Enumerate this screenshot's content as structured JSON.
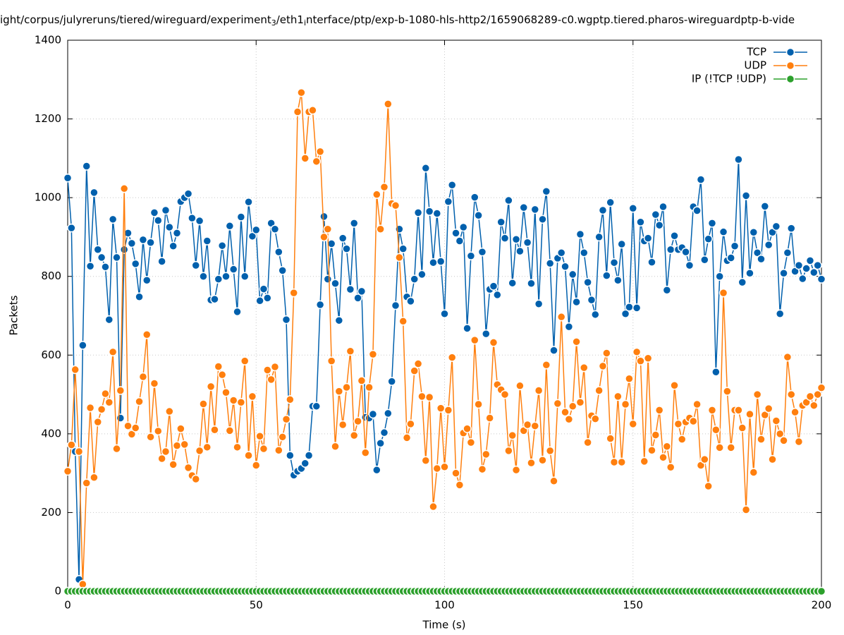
{
  "chart_data": {
    "type": "line",
    "title_parts": [
      "ight/corpus/julyreruns/tiered/wireguard/experiment",
      "3",
      "/eth1",
      "i",
      "nterface/ptp/exp-b-1080-hls-http2/1659068289-c0.wgptp.tiered.pharos-wireguardptp-b-vide"
    ],
    "x_label": "Time (s)",
    "y_label": "Packets",
    "xlim": [
      0,
      200
    ],
    "xticks": [
      0,
      50,
      100,
      150,
      200
    ],
    "ylim": [
      0,
      1400
    ],
    "yticks": [
      0,
      200,
      400,
      600,
      800,
      1000,
      1200,
      1400
    ],
    "grid": true,
    "legend": "top right",
    "x": [
      0,
      1,
      2,
      3,
      4,
      5,
      6,
      7,
      8,
      9,
      10,
      11,
      12,
      13,
      14,
      15,
      16,
      17,
      18,
      19,
      20,
      21,
      22,
      23,
      24,
      25,
      26,
      27,
      28,
      29,
      30,
      31,
      32,
      33,
      34,
      35,
      36,
      37,
      38,
      39,
      40,
      41,
      42,
      43,
      44,
      45,
      46,
      47,
      48,
      49,
      50,
      51,
      52,
      53,
      54,
      55,
      56,
      57,
      58,
      59,
      60,
      61,
      62,
      63,
      64,
      65,
      66,
      67,
      68,
      69,
      70,
      71,
      72,
      73,
      74,
      75,
      76,
      77,
      78,
      79,
      80,
      81,
      82,
      83,
      84,
      85,
      86,
      87,
      88,
      89,
      90,
      91,
      92,
      93,
      94,
      95,
      96,
      97,
      98,
      99,
      100,
      101,
      102,
      103,
      104,
      105,
      106,
      107,
      108,
      109,
      110,
      111,
      112,
      113,
      114,
      115,
      116,
      117,
      118,
      119,
      120,
      121,
      122,
      123,
      124,
      125,
      126,
      127,
      128,
      129,
      130,
      131,
      132,
      133,
      134,
      135,
      136,
      137,
      138,
      139,
      140,
      141,
      142,
      143,
      144,
      145,
      146,
      147,
      148,
      149,
      150,
      151,
      152,
      153,
      154,
      155,
      156,
      157,
      158,
      159,
      160,
      161,
      162,
      163,
      164,
      165,
      166,
      167,
      168,
      169,
      170,
      171,
      172,
      173,
      174,
      175,
      176,
      177,
      178,
      179,
      180,
      181,
      182,
      183,
      184,
      185,
      186,
      187,
      188,
      189,
      190,
      191,
      192,
      193,
      194,
      195,
      196,
      197,
      198,
      199,
      200
    ],
    "series": [
      {
        "name": "TCP",
        "color": "#0060ad",
        "values": [
          1050,
          923,
          355,
          30,
          625,
          1080,
          826,
          1013,
          868,
          848,
          824,
          690,
          945,
          848,
          440,
          868,
          910,
          884,
          832,
          748,
          893,
          790,
          886,
          962,
          942,
          838,
          968,
          925,
          877,
          910,
          990,
          1000,
          1010,
          948,
          828,
          941,
          800,
          890,
          740,
          742,
          793,
          878,
          800,
          928,
          818,
          710,
          951,
          800,
          989,
          902,
          918,
          738,
          768,
          745,
          935,
          920,
          862,
          815,
          690,
          345,
          295,
          305,
          312,
          325,
          345,
          470,
          470,
          728,
          952,
          793,
          883,
          782,
          688,
          897,
          870,
          767,
          935,
          745,
          762,
          442,
          440,
          450,
          308,
          376,
          403,
          452,
          533,
          726,
          920,
          870,
          748,
          737,
          793,
          962,
          805,
          1075,
          965,
          835,
          960,
          838,
          705,
          990,
          1032,
          910,
          890,
          925,
          668,
          852,
          1001,
          955,
          862,
          654,
          767,
          775,
          753,
          938,
          897,
          993,
          783,
          894,
          864,
          975,
          886,
          782,
          970,
          730,
          945,
          1016,
          833,
          612,
          846,
          860,
          825,
          672,
          805,
          735,
          907,
          860,
          785,
          740,
          703,
          900,
          968,
          802,
          988,
          835,
          790,
          882,
          705,
          722,
          973,
          720,
          938,
          890,
          897,
          836,
          957,
          930,
          977,
          765,
          868,
          903,
          868,
          873,
          862,
          828,
          977,
          967,
          1046,
          842,
          895,
          935,
          557,
          800,
          913,
          840,
          847,
          877,
          1097,
          785,
          1005,
          808,
          912,
          860,
          844,
          978,
          880,
          912,
          927,
          705,
          808,
          860,
          922,
          813,
          828,
          794,
          820,
          840,
          810,
          828,
          793
        ]
      },
      {
        "name": "UDP",
        "color": "#ff7f0e",
        "values": [
          305,
          372,
          563,
          355,
          18,
          275,
          466,
          289,
          430,
          462,
          502,
          480,
          608,
          362,
          510,
          1023,
          420,
          399,
          415,
          482,
          545,
          652,
          392,
          528,
          407,
          337,
          355,
          457,
          322,
          370,
          413,
          373,
          314,
          294,
          285,
          357,
          476,
          366,
          520,
          410,
          571,
          550,
          505,
          408,
          485,
          366,
          480,
          585,
          345,
          495,
          320,
          394,
          362,
          562,
          538,
          570,
          358,
          392,
          437,
          487,
          758,
          1218,
          1267,
          1100,
          1218,
          1222,
          1092,
          1117,
          900,
          920,
          585,
          368,
          508,
          423,
          518,
          610,
          396,
          432,
          535,
          352,
          518,
          602,
          1008,
          920,
          1027,
          1238,
          985,
          980,
          848,
          686,
          390,
          425,
          560,
          578,
          495,
          332,
          493,
          215,
          312,
          465,
          316,
          460,
          594,
          300,
          270,
          402,
          413,
          378,
          638,
          475,
          310,
          348,
          440,
          632,
          525,
          512,
          500,
          357,
          396,
          308,
          522,
          408,
          423,
          326,
          420,
          510,
          333,
          575,
          357,
          280,
          477,
          697,
          455,
          437,
          470,
          634,
          480,
          568,
          378,
          446,
          438,
          510,
          572,
          605,
          388,
          328,
          495,
          328,
          475,
          540,
          425,
          608,
          585,
          330,
          592,
          358,
          397,
          460,
          340,
          368,
          315,
          523,
          425,
          386,
          430,
          440,
          432,
          475,
          320,
          335,
          267,
          460,
          410,
          365,
          758,
          508,
          365,
          460,
          460,
          415,
          207,
          450,
          302,
          500,
          386,
          448,
          464,
          335,
          433,
          400,
          383,
          595,
          500,
          455,
          380,
          472,
          480,
          495,
          472,
          500,
          517
        ]
      },
      {
        "name": "IP (!TCP  !UDP)",
        "color": "#2ca02c",
        "values": [
          0,
          0,
          0,
          0,
          0,
          0,
          0,
          0,
          0,
          0,
          0,
          0,
          0,
          0,
          0,
          0,
          0,
          0,
          0,
          0,
          0,
          0,
          0,
          0,
          0,
          0,
          0,
          0,
          0,
          0,
          0,
          0,
          0,
          0,
          0,
          0,
          0,
          0,
          0,
          0,
          0,
          0,
          0,
          0,
          0,
          0,
          0,
          0,
          0,
          0,
          0,
          0,
          0,
          0,
          0,
          0,
          0,
          0,
          0,
          0,
          0,
          0,
          0,
          0,
          0,
          0,
          0,
          0,
          0,
          0,
          0,
          0,
          0,
          0,
          0,
          0,
          0,
          0,
          0,
          0,
          0,
          0,
          0,
          0,
          0,
          0,
          0,
          0,
          0,
          0,
          0,
          0,
          0,
          0,
          0,
          0,
          0,
          0,
          0,
          0,
          0,
          0,
          0,
          0,
          0,
          0,
          0,
          0,
          0,
          0,
          0,
          0,
          0,
          0,
          0,
          0,
          0,
          0,
          0,
          0,
          0,
          0,
          0,
          0,
          0,
          0,
          0,
          0,
          0,
          0,
          0,
          0,
          0,
          0,
          0,
          0,
          0,
          0,
          0,
          0,
          0,
          0,
          0,
          0,
          0,
          0,
          0,
          0,
          0,
          0,
          0,
          0,
          0,
          0,
          0,
          0,
          0,
          0,
          0,
          0,
          0,
          0,
          0,
          0,
          0,
          0,
          0,
          0,
          0,
          0,
          0,
          0,
          0,
          0,
          0,
          0,
          0,
          0,
          0,
          0,
          0,
          0,
          0,
          0,
          0,
          0,
          0,
          0,
          0,
          0,
          0,
          0,
          0,
          0,
          0,
          0,
          0,
          0,
          0,
          0,
          0
        ]
      }
    ]
  }
}
